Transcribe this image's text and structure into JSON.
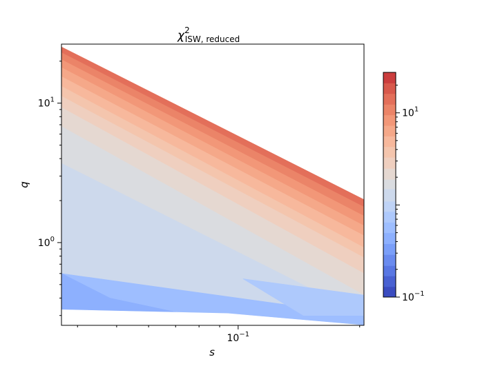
{
  "chart_data": {
    "type": "contourf",
    "title": "χ²_ISW, reduced",
    "title_parts": {
      "symbol": "χ",
      "superscript": "2",
      "subscript": "ISW, reduced"
    },
    "xlabel": "s",
    "ylabel": "q",
    "x_scale": "log",
    "y_scale": "log",
    "xlim": [
      0.0365,
      0.205
    ],
    "ylim": [
      0.255,
      26.5
    ],
    "x_major_ticks": [
      {
        "value": 0.1,
        "base": "10",
        "exp": "−1"
      }
    ],
    "y_major_ticks": [
      {
        "value": 1,
        "base": "10",
        "exp": "0"
      },
      {
        "value": 10,
        "base": "10",
        "exp": "1"
      }
    ],
    "colormap": "coolwarm",
    "levels": [
      0.1,
      0.13,
      0.17,
      0.22,
      0.29,
      0.38,
      0.5,
      0.65,
      0.85,
      1.1,
      1.5,
      1.9,
      2.5,
      3.3,
      4.3,
      5.6,
      7.3,
      9.5,
      12.4,
      16.2,
      21.1,
      27.5
    ],
    "colorbar": {
      "range": [
        0.1,
        27.5
      ],
      "ticks": [
        {
          "value": 0.1,
          "base": "10",
          "exp": "−1"
        },
        {
          "value": 10,
          "base": "10",
          "exp": "1"
        }
      ],
      "colors": [
        "#3b4cc0",
        "#4961d2",
        "#5977e3",
        "#6a8bef",
        "#7b9ff9",
        "#8db0fe",
        "#9ebeff",
        "#aec9fc",
        "#bfd3f6",
        "#cdd9ec",
        "#dadce0",
        "#e5d8d1",
        "#efcfbf",
        "#f4c5ad",
        "#f7b89c",
        "#f5a889",
        "#f29778",
        "#eb8468",
        "#e36f5a",
        "#d8594c",
        "#cb3e3e",
        "#b40426"
      ]
    },
    "filled_bands": [
      {
        "level": "< 0.29",
        "color": "#8db0fe"
      },
      {
        "level": "0.29–0.38",
        "color": "#9ebeff"
      },
      {
        "level": "0.38–0.5",
        "color": "#aec9fc"
      },
      {
        "level": "0.5–1.5",
        "color": "#bfd3f6"
      },
      {
        "level": "1.5–1.9",
        "color": "#cdd9ec"
      },
      {
        "level": "1.9–2.5",
        "color": "#dadce0"
      },
      {
        "level": "2.5–3.3",
        "color": "#e5d8d1"
      },
      {
        "level": "3.3–4.3",
        "color": "#efcfbf"
      },
      {
        "level": "4.3–5.6",
        "color": "#f4c5ad"
      },
      {
        "level": "5.6–7.3",
        "color": "#f7b89c"
      },
      {
        "level": "7.3–9.5",
        "color": "#f5a889"
      },
      {
        "level": "9.5–12.4",
        "color": "#f29778"
      },
      {
        "level": "12.4–16.2",
        "color": "#eb8468"
      },
      {
        "level": "16.2–21.1",
        "color": "#e36f5a"
      }
    ],
    "band_boundaries_q": [
      {
        "level": "upper domain edge",
        "left_q": 25.5,
        "right_q": 2.05
      },
      {
        "level": "16.2",
        "left_q": 23.0,
        "right_q": 1.8
      },
      {
        "level": "12.4",
        "left_q": 20.5,
        "right_q": 1.55
      },
      {
        "level": "9.5",
        "left_q": 18.0,
        "right_q": 1.32
      },
      {
        "level": "7.3",
        "left_q": 15.5,
        "right_q": 1.12
      },
      {
        "level": "5.6",
        "left_q": 13.2,
        "right_q": 0.92
      },
      {
        "level": "4.3",
        "left_q": 11.2,
        "right_q": 0.78
      },
      {
        "level": "3.3",
        "left_q": 9.3,
        "right_q": 0.6
      },
      {
        "level": "2.5",
        "left_q": 6.8,
        "right_q": 0.42
      },
      {
        "level": "1.5",
        "left_q": 3.7,
        "right_q": 0.3
      },
      {
        "level": "0.38",
        "left_q": 0.6,
        "right_q": 0.3
      }
    ],
    "grid": false
  }
}
